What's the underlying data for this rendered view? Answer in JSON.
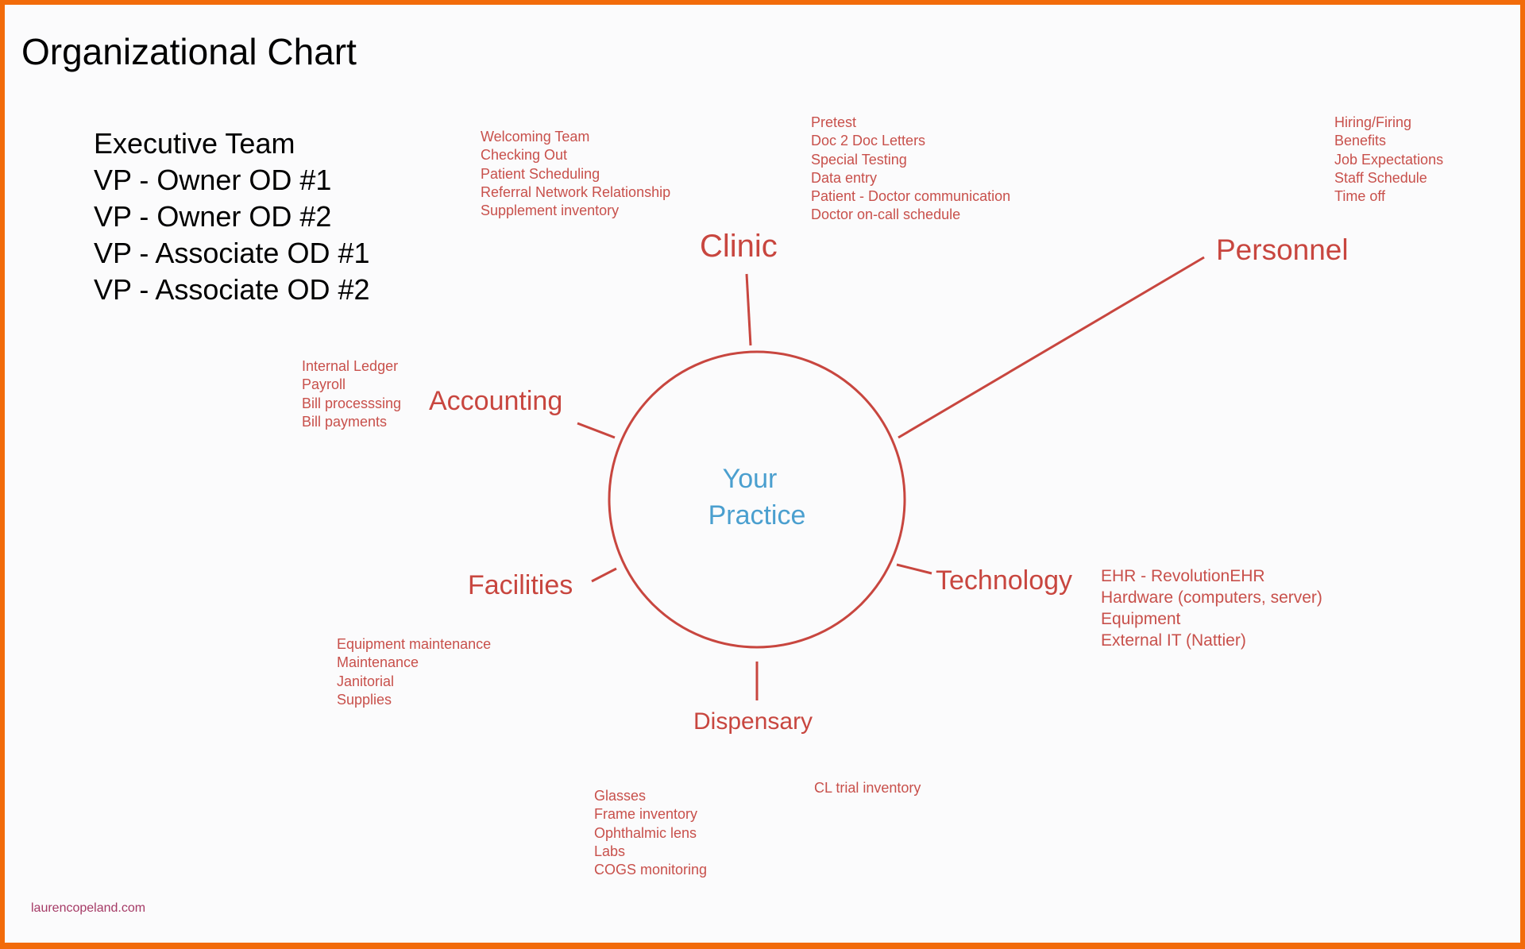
{
  "title": "Organizational Chart",
  "executive": [
    "Executive Team",
    "VP - Owner OD #1",
    "VP - Owner OD #2",
    "VP - Associate OD #1",
    "VP - Associate OD #2"
  ],
  "center": {
    "line1": "Your",
    "line2": "Practice"
  },
  "colors": {
    "border": "#f26b0a",
    "branch": "#c8463f",
    "center": "#4a9fcf"
  },
  "branches": {
    "clinic": {
      "label": "Clinic",
      "front_desk": [
        "Welcoming Team",
        "Checking Out",
        "Patient Scheduling",
        "Referral Network Relationship",
        "Supplement inventory"
      ],
      "clinical": [
        "Pretest",
        "Doc 2 Doc Letters",
        "Special Testing",
        "Data entry",
        "Patient - Doctor communication",
        "Doctor on-call schedule"
      ]
    },
    "personnel": {
      "label": "Personnel",
      "items": [
        "Hiring/Firing",
        "Benefits",
        "Job Expectations",
        "Staff Schedule",
        "Time off"
      ]
    },
    "accounting": {
      "label": "Accounting",
      "items": [
        "Internal Ledger",
        "Payroll",
        "Bill processsing",
        "Bill payments"
      ]
    },
    "facilities": {
      "label": "Facilities",
      "items": [
        "Equipment maintenance",
        "Maintenance",
        "Janitorial",
        "Supplies"
      ]
    },
    "technology": {
      "label": "Technology",
      "items": [
        "EHR - RevolutionEHR",
        "Hardware (computers, server)",
        "Equipment",
        "External IT (Nattier)"
      ]
    },
    "dispensary": {
      "label": "Dispensary",
      "items": [
        "Glasses",
        "Frame inventory",
        "Ophthalmic lens",
        "Labs",
        "COGS monitoring"
      ],
      "extra": [
        "CL trial inventory"
      ]
    }
  },
  "watermark": "laurencopeland.com"
}
